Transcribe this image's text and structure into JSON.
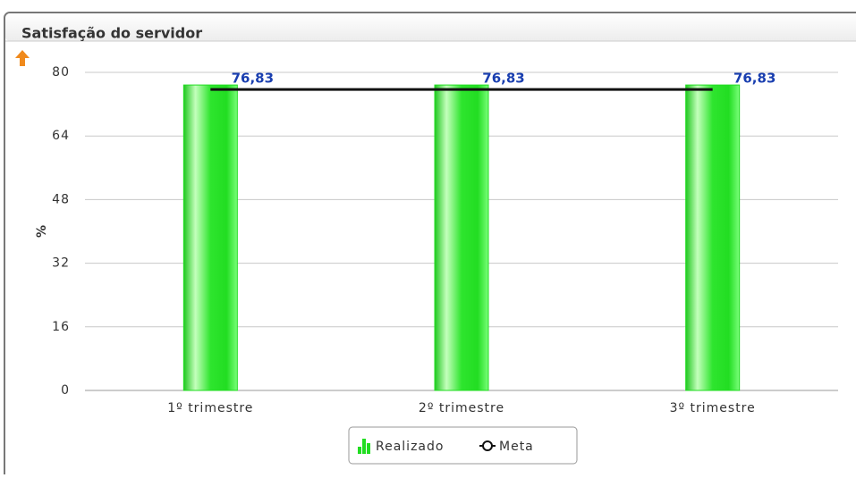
{
  "chart_data": {
    "type": "bar",
    "title": "Satisfação do servidor",
    "ylabel": "%",
    "categories": [
      "1º trimestre",
      "2º trimestre",
      "3º trimestre"
    ],
    "series": [
      {
        "name": "Realizado",
        "type": "bar",
        "color": "#22dd22",
        "values": [
          76.83,
          76.83,
          76.83
        ],
        "value_labels": [
          "76,83",
          "76,83",
          "76,83"
        ]
      },
      {
        "name": "Meta",
        "type": "line",
        "color": "#111111",
        "values": [
          75.7,
          75.7,
          75.7
        ]
      }
    ],
    "ylim": [
      0,
      80
    ],
    "yticks": [
      0,
      16,
      32,
      48,
      64,
      80
    ],
    "grid": true,
    "legend": "bottom"
  }
}
